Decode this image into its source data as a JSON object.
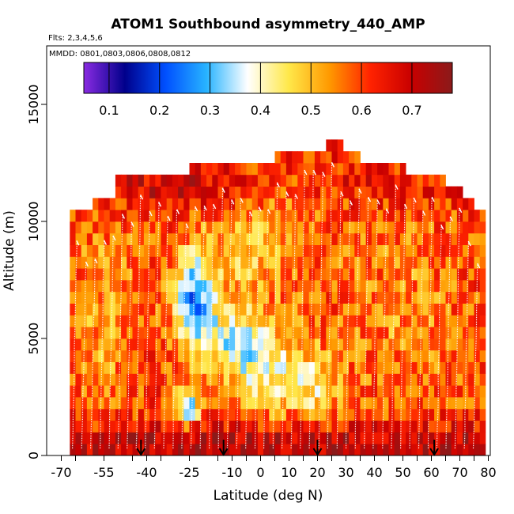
{
  "chart_data": {
    "type": "heatmap",
    "title": "ATOM1 Southbound asymmetry_440_AMP",
    "subtitle_flights": "Flts: 2,3,4,5,6",
    "subtitle_dates": "MMDD: 0801,0803,0806,0808,0812",
    "xlabel": "Latitude (deg N)",
    "ylabel": "Altitude (m)",
    "xlim": [
      -70,
      82
    ],
    "ylim": [
      0,
      17500
    ],
    "x_ticks": [
      -70,
      -55,
      -40,
      -25,
      -10,
      0,
      10,
      20,
      30,
      40,
      50,
      60,
      70,
      80
    ],
    "x_tick_labels": [
      "-70",
      "-55",
      "-40",
      "-25",
      "-10",
      "0",
      "10",
      "20",
      "30",
      "40",
      "50",
      "60",
      "70",
      "80"
    ],
    "y_ticks": [
      0,
      5000,
      10000,
      15000
    ],
    "y_tick_labels": [
      "0",
      "5000",
      "10000",
      "15000"
    ],
    "colorbar": {
      "range": [
        0.05,
        0.78
      ],
      "tick_values": [
        0.1,
        0.2,
        0.3,
        0.4,
        0.5,
        0.6,
        0.7
      ],
      "tick_labels": [
        "0.1",
        "0.2",
        "0.3",
        "0.4",
        "0.5",
        "0.6",
        "0.7"
      ],
      "colors": [
        "#8a2be2",
        "#00008b",
        "#0050ff",
        "#28b4ff",
        "#ffffff",
        "#ffe84a",
        "#ff9900",
        "#ff2200",
        "#c80000",
        "#8b1a1a"
      ]
    },
    "profile_markers_lat": [
      -42,
      -13,
      20,
      61
    ],
    "grid": {
      "lat_min": -67,
      "lat_max": 79,
      "lat_step": 2,
      "alt_step": 500,
      "top_altitude": [
        [
          -67,
          10500
        ],
        [
          -59,
          11000
        ],
        [
          -51,
          12000
        ],
        [
          -25,
          12500
        ],
        [
          4,
          13000
        ],
        [
          23,
          13500
        ],
        [
          28,
          13000
        ],
        [
          35,
          12500
        ],
        [
          50,
          12000
        ],
        [
          64,
          11500
        ],
        [
          70,
          11000
        ],
        [
          74,
          10500
        ],
        [
          79,
          10000
        ]
      ],
      "base_value": 0.6,
      "features": [
        {
          "lat": -23,
          "alt": 6500,
          "sx": 5,
          "sy": 1400,
          "amp": -0.32
        },
        {
          "lat": -9,
          "alt": 4800,
          "sx": 8,
          "sy": 1000,
          "amp": -0.2
        },
        {
          "lat": 4,
          "alt": 3500,
          "sx": 10,
          "sy": 1300,
          "amp": -0.16
        },
        {
          "lat": 20,
          "alt": 3000,
          "sx": 6,
          "sy": 1000,
          "amp": -0.12
        },
        {
          "lat": -26,
          "alt": 2000,
          "sx": 3,
          "sy": 500,
          "amp": -0.3
        },
        {
          "lat": -3,
          "alt": 8500,
          "sx": 14,
          "sy": 1500,
          "amp": -0.1
        },
        {
          "lat": -55,
          "alt": 6000,
          "sx": 8,
          "sy": 3000,
          "amp": -0.08
        },
        {
          "lat": 50,
          "alt": 6000,
          "sx": 14,
          "sy": 3000,
          "amp": -0.06
        },
        {
          "lat": 10,
          "alt": 11500,
          "sx": 15,
          "sy": 1000,
          "amp": -0.08
        },
        {
          "lat": 0,
          "alt": 500,
          "sx": 200,
          "sy": 600,
          "amp": 0.13
        },
        {
          "lat": -10,
          "alt": 11500,
          "sx": 60,
          "sy": 700,
          "amp": 0.1
        },
        {
          "lat": 10,
          "alt": 12800,
          "sx": 30,
          "sy": 500,
          "amp": 0.03
        }
      ]
    }
  }
}
